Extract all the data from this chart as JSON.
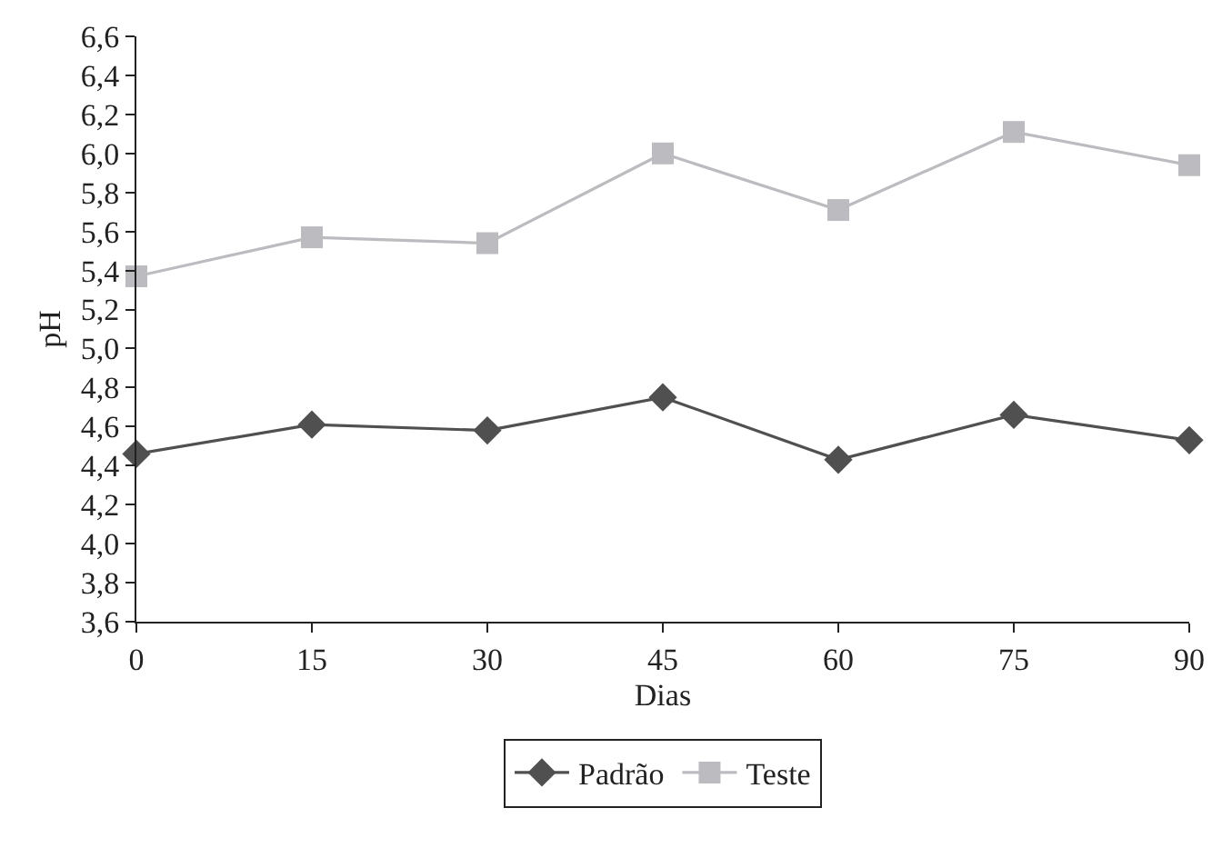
{
  "chart_data": {
    "type": "line",
    "xlabel": "Dias",
    "ylabel": "pH",
    "x": [
      0,
      15,
      30,
      45,
      60,
      75,
      90
    ],
    "xlim": [
      0,
      90
    ],
    "xticks": [
      {
        "value": 0,
        "label": "0"
      },
      {
        "value": 15,
        "label": "15"
      },
      {
        "value": 30,
        "label": "30"
      },
      {
        "value": 45,
        "label": "45"
      },
      {
        "value": 60,
        "label": "60"
      },
      {
        "value": 75,
        "label": "75"
      },
      {
        "value": 90,
        "label": "90"
      }
    ],
    "ylim": [
      3.6,
      6.6
    ],
    "yticks": [
      {
        "value": 3.6,
        "label": "3,6"
      },
      {
        "value": 3.8,
        "label": "3,8"
      },
      {
        "value": 4.0,
        "label": "4,0"
      },
      {
        "value": 4.2,
        "label": "4,2"
      },
      {
        "value": 4.4,
        "label": "4,4"
      },
      {
        "value": 4.6,
        "label": "4,6"
      },
      {
        "value": 4.8,
        "label": "4,8"
      },
      {
        "value": 5.0,
        "label": "5,0"
      },
      {
        "value": 5.2,
        "label": "5,2"
      },
      {
        "value": 5.4,
        "label": "5,4"
      },
      {
        "value": 5.6,
        "label": "5,6"
      },
      {
        "value": 5.8,
        "label": "5,8"
      },
      {
        "value": 6.0,
        "label": "6,0"
      },
      {
        "value": 6.2,
        "label": "6,2"
      },
      {
        "value": 6.4,
        "label": "6,4"
      },
      {
        "value": 6.6,
        "label": "6,6"
      }
    ],
    "grid": false,
    "legend": "bottom",
    "line_style": "solid",
    "series": [
      {
        "name": "Padrão",
        "color": "#505050",
        "marker": "diamond",
        "values": [
          4.46,
          4.61,
          4.58,
          4.75,
          4.43,
          4.66,
          4.53
        ]
      },
      {
        "name": "Teste",
        "color": "#bcbcc0",
        "marker": "square",
        "values": [
          5.37,
          5.57,
          5.54,
          6.0,
          5.71,
          6.11,
          5.94
        ]
      }
    ]
  }
}
